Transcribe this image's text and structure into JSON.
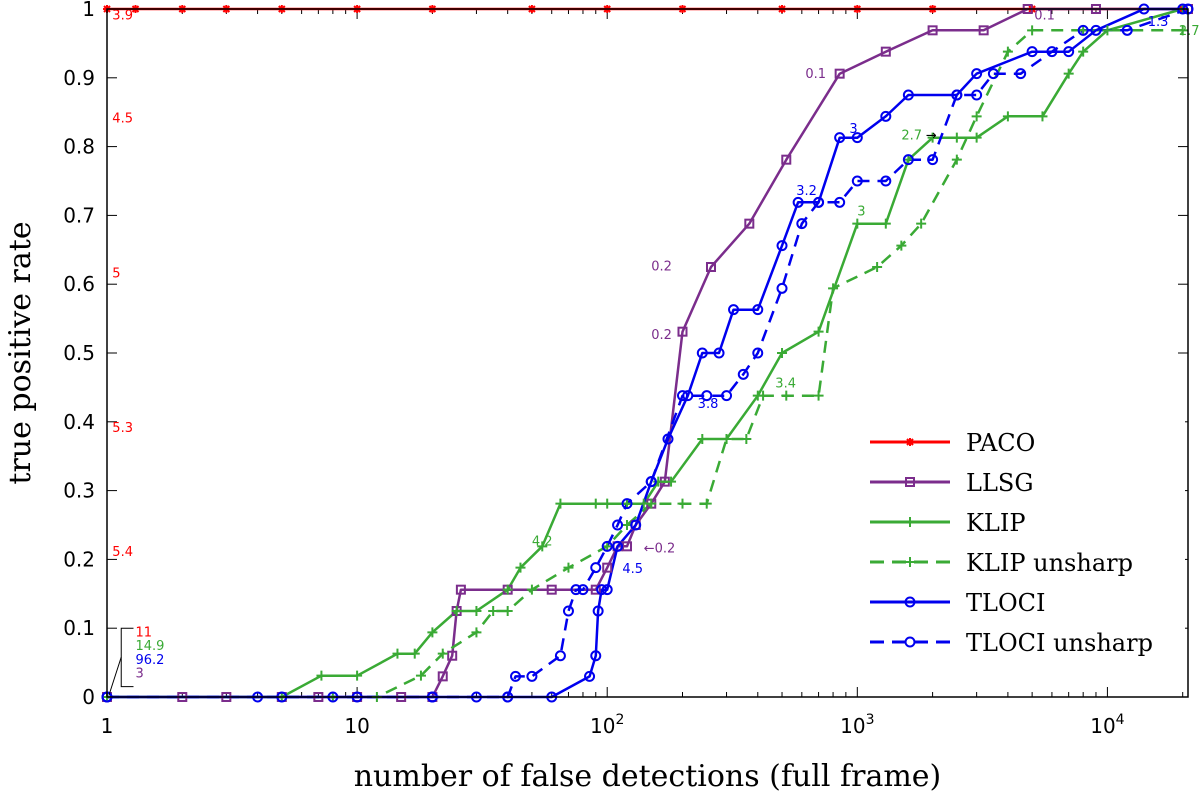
{
  "chart_data": {
    "type": "line",
    "xlabel": "number of false detections (full frame)",
    "ylabel": "true positive rate",
    "xscale": "log",
    "xlim": [
      1,
      21000
    ],
    "ylim": [
      0,
      1
    ],
    "x_ticks": [
      {
        "value": 1,
        "base": "1",
        "exp": ""
      },
      {
        "value": 10,
        "base": "10",
        "exp": ""
      },
      {
        "value": 100,
        "base": "10",
        "exp": "2"
      },
      {
        "value": 1000,
        "base": "10",
        "exp": "3"
      },
      {
        "value": 10000,
        "base": "10",
        "exp": "4"
      }
    ],
    "y_ticks": [
      "0",
      "0.1",
      "0.2",
      "0.3",
      "0.4",
      "0.5",
      "0.6",
      "0.7",
      "0.8",
      "0.9",
      "1"
    ],
    "legend_position": "bottom-right",
    "series": [
      {
        "name": "PACO",
        "color": "#ff0000",
        "dash": "solid",
        "marker": "star",
        "x": [
          1,
          1.3,
          2,
          3,
          5,
          10,
          20,
          50,
          100,
          200,
          500,
          1000,
          2000,
          5000,
          20000
        ],
        "y": [
          1,
          1,
          1,
          1,
          1,
          1,
          1,
          1,
          1,
          1,
          1,
          1,
          1,
          1,
          1
        ]
      },
      {
        "name": "LLSG",
        "color": "#7b2d8c",
        "dash": "solid",
        "marker": "square",
        "x": [
          1,
          2,
          3,
          5,
          7,
          10,
          15,
          20,
          22,
          24,
          25,
          26,
          40,
          60,
          90,
          100,
          110,
          120,
          130,
          150,
          170,
          200,
          260,
          370,
          520,
          850,
          1300,
          2000,
          3200,
          4800,
          9000,
          21000
        ],
        "y": [
          0,
          0,
          0,
          0,
          0,
          0,
          0,
          0,
          0.03,
          0.06,
          0.125,
          0.156,
          0.156,
          0.156,
          0.156,
          0.188,
          0.219,
          0.219,
          0.25,
          0.281,
          0.313,
          0.531,
          0.625,
          0.688,
          0.781,
          0.906,
          0.938,
          0.969,
          0.969,
          1,
          1,
          1
        ]
      },
      {
        "name": "KLIP",
        "color": "#3aaa35",
        "dash": "solid",
        "marker": "plus",
        "x": [
          1,
          5,
          7.2,
          10,
          14.5,
          17,
          20,
          25,
          30,
          40,
          45,
          55,
          65,
          90,
          100,
          120,
          140,
          160,
          180,
          240,
          300,
          400,
          500,
          700,
          1000,
          1300,
          1600,
          2000,
          2500,
          3000,
          4000,
          5500,
          7000,
          8000,
          10000,
          20000
        ],
        "y": [
          0,
          0,
          0.031,
          0.031,
          0.063,
          0.063,
          0.094,
          0.125,
          0.125,
          0.156,
          0.188,
          0.219,
          0.281,
          0.281,
          0.281,
          0.281,
          0.281,
          0.313,
          0.313,
          0.375,
          0.375,
          0.438,
          0.5,
          0.531,
          0.688,
          0.688,
          0.781,
          0.813,
          0.813,
          0.813,
          0.844,
          0.844,
          0.906,
          0.938,
          0.969,
          1
        ]
      },
      {
        "name": "KLIP unsharp",
        "color": "#3aaa35",
        "dash": "dashed",
        "marker": "plus",
        "x": [
          1,
          8,
          12,
          18,
          22,
          30,
          35,
          40,
          50,
          70,
          100,
          120,
          150,
          200,
          250,
          300,
          360,
          420,
          520,
          700,
          800,
          1200,
          1500,
          1800,
          2500,
          3000,
          4000,
          5000,
          8000,
          20000
        ],
        "y": [
          0,
          0,
          0,
          0.031,
          0.063,
          0.094,
          0.125,
          0.125,
          0.156,
          0.188,
          0.219,
          0.25,
          0.281,
          0.281,
          0.281,
          0.375,
          0.375,
          0.438,
          0.438,
          0.438,
          0.594,
          0.625,
          0.656,
          0.688,
          0.781,
          0.844,
          0.938,
          0.969,
          0.969,
          0.969
        ]
      },
      {
        "name": "TLOCI",
        "color": "#0000ee",
        "dash": "solid",
        "marker": "circle",
        "x": [
          1,
          4,
          8,
          20,
          40,
          60,
          85,
          90,
          92,
          95,
          100,
          110,
          130,
          150,
          175,
          210,
          240,
          280,
          320,
          400,
          500,
          580,
          700,
          850,
          1000,
          1300,
          1600,
          2500,
          3000,
          5000,
          7000,
          9000,
          14000,
          20000
        ],
        "y": [
          0,
          0,
          0,
          0,
          0,
          0,
          0.03,
          0.06,
          0.125,
          0.156,
          0.156,
          0.219,
          0.25,
          0.313,
          0.375,
          0.438,
          0.5,
          0.5,
          0.563,
          0.563,
          0.656,
          0.719,
          0.719,
          0.813,
          0.813,
          0.844,
          0.875,
          0.875,
          0.906,
          0.938,
          0.938,
          0.969,
          1,
          1
        ]
      },
      {
        "name": "TLOCI unsharp",
        "color": "#0000ee",
        "dash": "dashed",
        "marker": "circle",
        "x": [
          1,
          5,
          10,
          20,
          30,
          40,
          43,
          50,
          65,
          70,
          75,
          80,
          90,
          100,
          110,
          120,
          150,
          200,
          250,
          300,
          350,
          400,
          500,
          600,
          700,
          850,
          1000,
          1300,
          1600,
          2000,
          2500,
          3000,
          3500,
          4500,
          6000,
          8000,
          12000,
          21000
        ],
        "y": [
          0,
          0,
          0,
          0,
          0,
          0,
          0.03,
          0.03,
          0.06,
          0.125,
          0.156,
          0.156,
          0.188,
          0.219,
          0.25,
          0.281,
          0.313,
          0.438,
          0.438,
          0.438,
          0.469,
          0.5,
          0.594,
          0.688,
          0.719,
          0.719,
          0.75,
          0.75,
          0.781,
          0.781,
          0.875,
          0.875,
          0.906,
          0.906,
          0.938,
          0.969,
          0.969,
          1
        ]
      }
    ],
    "annotations": [
      {
        "text": "3.9",
        "x": 1.05,
        "y": 0.985,
        "color": "#ff0000"
      },
      {
        "text": "4.5",
        "x": 1.05,
        "y": 0.835,
        "color": "#ff0000"
      },
      {
        "text": "5",
        "x": 1.05,
        "y": 0.61,
        "color": "#ff0000"
      },
      {
        "text": "5.3",
        "x": 1.05,
        "y": 0.385,
        "color": "#ff0000"
      },
      {
        "text": "5.4",
        "x": 1.05,
        "y": 0.205,
        "color": "#ff0000"
      },
      {
        "text": "11",
        "x": 1.3,
        "y": 0.088,
        "color": "#ff0000"
      },
      {
        "text": "14.9",
        "x": 1.3,
        "y": 0.068,
        "color": "#3aaa35"
      },
      {
        "text": "96.2",
        "x": 1.3,
        "y": 0.048,
        "color": "#0000ee"
      },
      {
        "text": "3",
        "x": 1.3,
        "y": 0.028,
        "color": "#7b2d8c"
      },
      {
        "text": "0.1",
        "x": 620,
        "y": 0.9,
        "color": "#7b2d8c"
      },
      {
        "text": "0.2",
        "x": 150,
        "y": 0.62,
        "color": "#7b2d8c"
      },
      {
        "text": "0.2",
        "x": 150,
        "y": 0.52,
        "color": "#7b2d8c"
      },
      {
        "text": "←0.2",
        "x": 140,
        "y": 0.21,
        "color": "#7b2d8c"
      },
      {
        "text": "0.1",
        "x": 5100,
        "y": 0.985,
        "color": "#7b2d8c"
      },
      {
        "text": "3",
        "x": 930,
        "y": 0.82,
        "color": "#0000ee"
      },
      {
        "text": "3.2",
        "x": 570,
        "y": 0.73,
        "color": "#0000ee"
      },
      {
        "text": "3.8",
        "x": 230,
        "y": 0.42,
        "color": "#0000ee"
      },
      {
        "text": "4.5",
        "x": 115,
        "y": 0.18,
        "color": "#0000ee"
      },
      {
        "text": "1.3",
        "x": 14500,
        "y": 0.975,
        "color": "#0000ee"
      },
      {
        "text": "2.7",
        "x": 1500,
        "y": 0.81,
        "color": "#3aaa35"
      },
      {
        "text": "→",
        "x": 1880,
        "y": 0.81,
        "color": "#000000"
      },
      {
        "text": "3",
        "x": 1000,
        "y": 0.7,
        "color": "#3aaa35"
      },
      {
        "text": "3.4",
        "x": 470,
        "y": 0.45,
        "color": "#3aaa35"
      },
      {
        "text": "4.2",
        "x": 50,
        "y": 0.22,
        "color": "#3aaa35"
      },
      {
        "text": "2.7",
        "x": 19300,
        "y": 0.962,
        "color": "#3aaa35"
      }
    ]
  }
}
